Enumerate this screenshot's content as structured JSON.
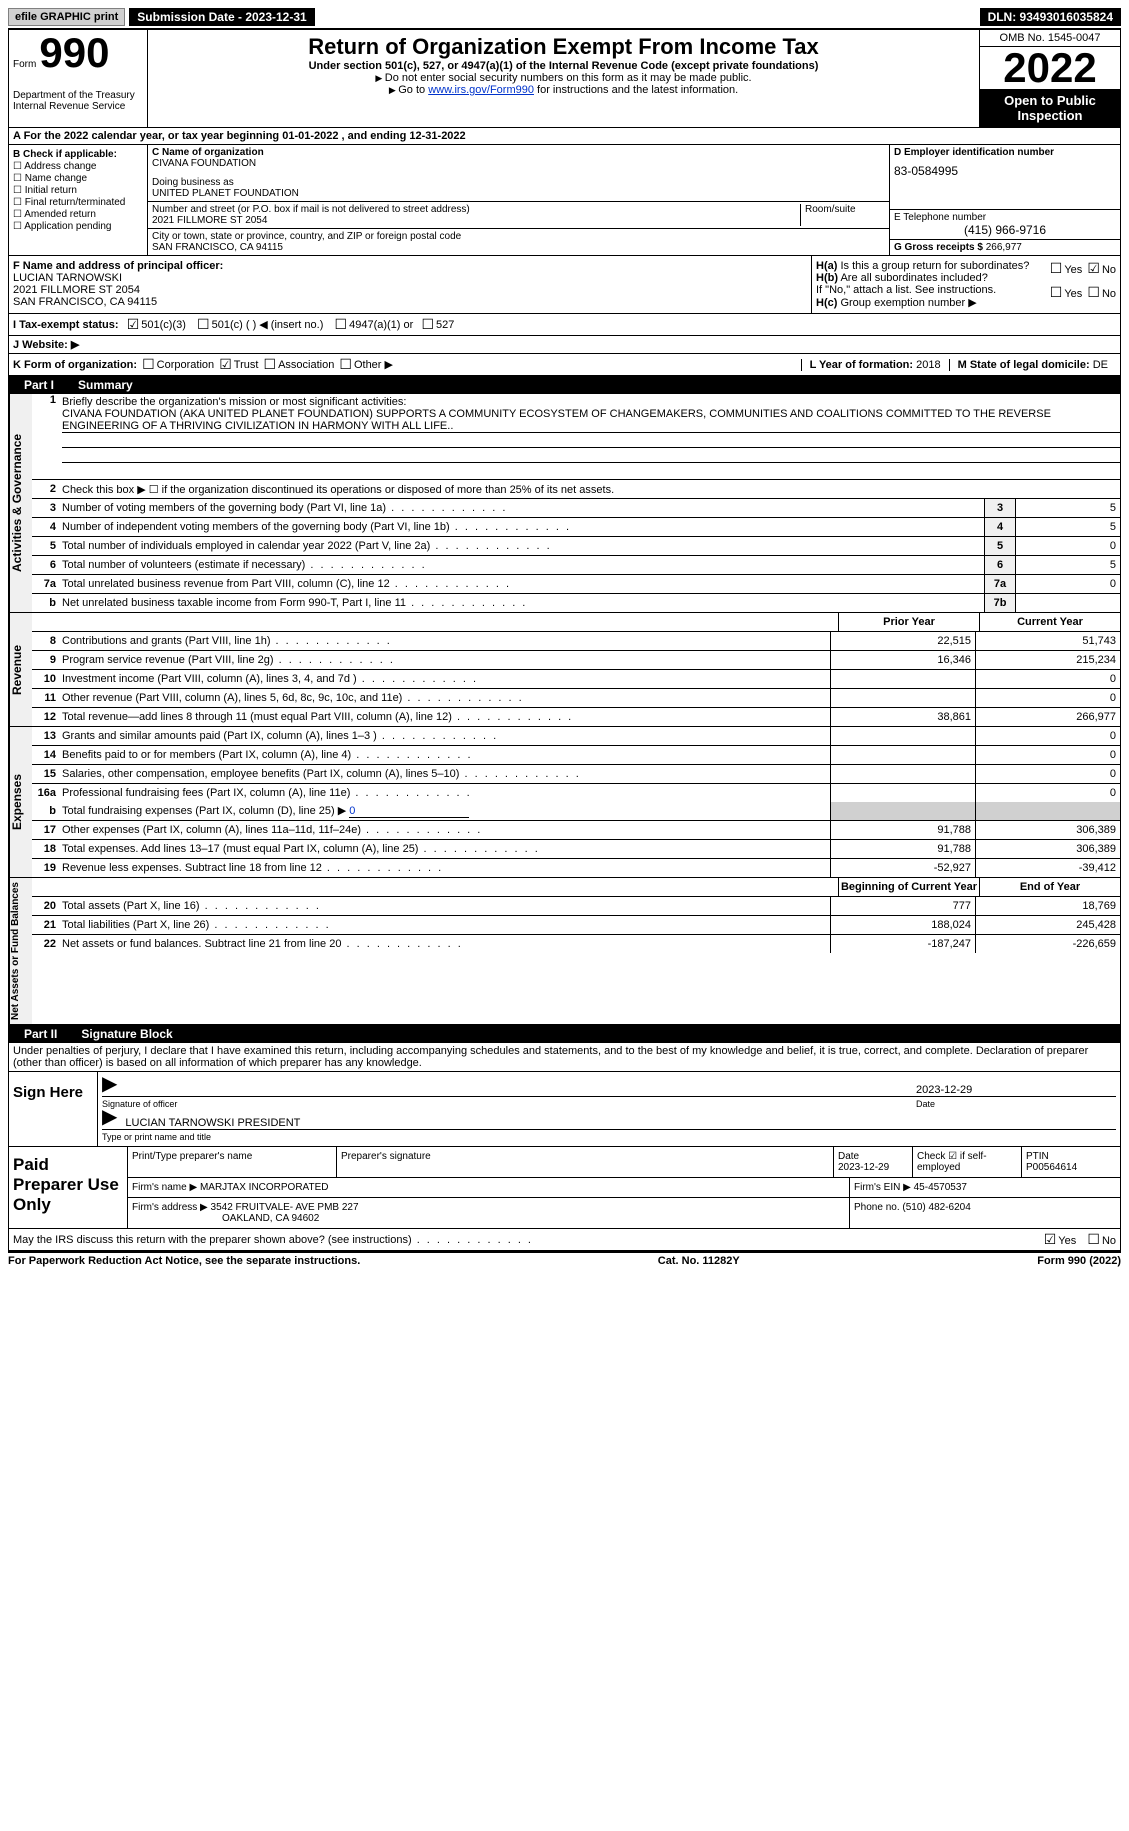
{
  "topbar": {
    "efile": "efile GRAPHIC print",
    "submission": "Submission Date - 2023-12-31",
    "dln": "DLN: 93493016035824"
  },
  "header": {
    "form_word": "Form",
    "form_num": "990",
    "dept": "Department of the Treasury",
    "irs": "Internal Revenue Service",
    "title": "Return of Organization Exempt From Income Tax",
    "sub": "Under section 501(c), 527, or 4947(a)(1) of the Internal Revenue Code (except private foundations)",
    "note1": "Do not enter social security numbers on this form as it may be made public.",
    "note2_pre": "Go to ",
    "note2_link": "www.irs.gov/Form990",
    "note2_post": " for instructions and the latest information.",
    "omb": "OMB No. 1545-0047",
    "year": "2022",
    "open": "Open to Public Inspection"
  },
  "rowA": {
    "text_pre": "A For the 2022 calendar year, or tax year beginning ",
    "begin": "01-01-2022",
    "mid": "   , and ending ",
    "end": "12-31-2022"
  },
  "B": {
    "label": "B Check if applicable:",
    "opts": [
      "Address change",
      "Name change",
      "Initial return",
      "Final return/terminated",
      "Amended return",
      "Application pending"
    ]
  },
  "C": {
    "label": "C Name of organization",
    "name": "CIVANA FOUNDATION",
    "dba_label": "Doing business as",
    "dba": "UNITED PLANET FOUNDATION",
    "street_label": "Number and street (or P.O. box if mail is not delivered to street address)",
    "room_label": "Room/suite",
    "street": "2021 FILLMORE ST 2054",
    "city_label": "City or town, state or province, country, and ZIP or foreign postal code",
    "city": "SAN FRANCISCO, CA  94115"
  },
  "D": {
    "label": "D Employer identification number",
    "val": "83-0584995"
  },
  "E": {
    "label": "E Telephone number",
    "val": "(415) 966-9716"
  },
  "G": {
    "label": "G Gross receipts $",
    "val": "266,977"
  },
  "F": {
    "label": "F  Name and address of principal officer:",
    "name": "LUCIAN TARNOWSKI",
    "addr1": "2021 FILLMORE ST 2054",
    "addr2": "SAN FRANCISCO, CA  94115"
  },
  "H": {
    "a": "Is this a group return for subordinates?",
    "b": "Are all subordinates included?",
    "b_note": "If \"No,\" attach a list. See instructions.",
    "c": "Group exemption number ▶",
    "yes": "Yes",
    "no": "No"
  },
  "I": {
    "label": "I   Tax-exempt status:",
    "o1": "501(c)(3)",
    "o2": "501(c) (   ) ◀ (insert no.)",
    "o3": "4947(a)(1) or",
    "o4": "527"
  },
  "J": {
    "label": "J   Website: ▶"
  },
  "K": {
    "label": "K Form of organization:",
    "o1": "Corporation",
    "o2": "Trust",
    "o3": "Association",
    "o4": "Other ▶"
  },
  "L": {
    "label": "L Year of formation:",
    "val": "2018"
  },
  "M": {
    "label": "M State of legal domicile:",
    "val": "DE"
  },
  "part1": {
    "num": "Part I",
    "title": "Summary"
  },
  "mission": {
    "num": "1",
    "label": "Briefly describe the organization's mission or most significant activities:",
    "text": "CIVANA FOUNDATION (AKA UNITED PLANET FOUNDATION) SUPPORTS A COMMUNITY ECOSYSTEM OF CHANGEMAKERS, COMMUNITIES AND COALITIONS COMMITTED TO THE REVERSE ENGINEERING OF A THRIVING CIVILIZATION IN HARMONY WITH ALL LIFE.."
  },
  "line2": {
    "num": "2",
    "txt": "Check this box ▶ ☐  if the organization discontinued its operations or disposed of more than 25% of its net assets."
  },
  "lines_ag": [
    {
      "n": "3",
      "t": "Number of voting members of the governing body (Part VI, line 1a)",
      "b": "3",
      "v": "5"
    },
    {
      "n": "4",
      "t": "Number of independent voting members of the governing body (Part VI, line 1b)",
      "b": "4",
      "v": "5"
    },
    {
      "n": "5",
      "t": "Total number of individuals employed in calendar year 2022 (Part V, line 2a)",
      "b": "5",
      "v": "0"
    },
    {
      "n": "6",
      "t": "Total number of volunteers (estimate if necessary)",
      "b": "6",
      "v": "5"
    },
    {
      "n": "7a",
      "t": "Total unrelated business revenue from Part VIII, column (C), line 12",
      "b": "7a",
      "v": "0"
    },
    {
      "n": "b",
      "t": "Net unrelated business taxable income from Form 990-T, Part I, line 11",
      "b": "7b",
      "v": ""
    }
  ],
  "side_labels": {
    "ag": "Activities & Governance",
    "rev": "Revenue",
    "exp": "Expenses",
    "na": "Net Assets or Fund Balances"
  },
  "cols": {
    "prior": "Prior Year",
    "curr": "Current Year",
    "beg": "Beginning of Current Year",
    "end": "End of Year"
  },
  "revenue": [
    {
      "n": "8",
      "t": "Contributions and grants (Part VIII, line 1h)",
      "p": "22,515",
      "c": "51,743"
    },
    {
      "n": "9",
      "t": "Program service revenue (Part VIII, line 2g)",
      "p": "16,346",
      "c": "215,234"
    },
    {
      "n": "10",
      "t": "Investment income (Part VIII, column (A), lines 3, 4, and 7d )",
      "p": "",
      "c": "0"
    },
    {
      "n": "11",
      "t": "Other revenue (Part VIII, column (A), lines 5, 6d, 8c, 9c, 10c, and 11e)",
      "p": "",
      "c": "0"
    },
    {
      "n": "12",
      "t": "Total revenue—add lines 8 through 11 (must equal Part VIII, column (A), line 12)",
      "p": "38,861",
      "c": "266,977"
    }
  ],
  "expenses": [
    {
      "n": "13",
      "t": "Grants and similar amounts paid (Part IX, column (A), lines 1–3 )",
      "p": "",
      "c": "0"
    },
    {
      "n": "14",
      "t": "Benefits paid to or for members (Part IX, column (A), line 4)",
      "p": "",
      "c": "0"
    },
    {
      "n": "15",
      "t": "Salaries, other compensation, employee benefits (Part IX, column (A), lines 5–10)",
      "p": "",
      "c": "0"
    },
    {
      "n": "16a",
      "t": "Professional fundraising fees (Part IX, column (A), line 11e)",
      "p": "",
      "c": "0"
    }
  ],
  "exp_b": {
    "n": "b",
    "t": "Total fundraising expenses (Part IX, column (D), line 25) ▶",
    "v": "0"
  },
  "expenses2": [
    {
      "n": "17",
      "t": "Other expenses (Part IX, column (A), lines 11a–11d, 11f–24e)",
      "p": "91,788",
      "c": "306,389"
    },
    {
      "n": "18",
      "t": "Total expenses. Add lines 13–17 (must equal Part IX, column (A), line 25)",
      "p": "91,788",
      "c": "306,389"
    },
    {
      "n": "19",
      "t": "Revenue less expenses. Subtract line 18 from line 12",
      "p": "-52,927",
      "c": "-39,412"
    }
  ],
  "netassets": [
    {
      "n": "20",
      "t": "Total assets (Part X, line 16)",
      "p": "777",
      "c": "18,769"
    },
    {
      "n": "21",
      "t": "Total liabilities (Part X, line 26)",
      "p": "188,024",
      "c": "245,428"
    },
    {
      "n": "22",
      "t": "Net assets or fund balances. Subtract line 21 from line 20",
      "p": "-187,247",
      "c": "-226,659"
    }
  ],
  "part2": {
    "num": "Part II",
    "title": "Signature Block"
  },
  "sig": {
    "penalties": "Under penalties of perjury, I declare that I have examined this return, including accompanying schedules and statements, and to the best of my knowledge and belief, it is true, correct, and complete. Declaration of preparer (other than officer) is based on all information of which preparer has any knowledge.",
    "sign_here": "Sign Here",
    "sig_label": "Signature of officer",
    "date": "2023-12-29",
    "date_label": "Date",
    "name": "LUCIAN TARNOWSKI PRESIDENT",
    "name_label": "Type or print name and title"
  },
  "prep": {
    "title": "Paid Preparer Use Only",
    "print_label": "Print/Type preparer's name",
    "sig_label": "Preparer's signature",
    "date_label": "Date",
    "date": "2023-12-29",
    "check_label": "Check ☑ if self-employed",
    "ptin_label": "PTIN",
    "ptin": "P00564614",
    "firm_label": "Firm's name    ▶",
    "firm": "MARJTAX INCORPORATED",
    "ein_label": "Firm's EIN ▶",
    "ein": "45-4570537",
    "addr_label": "Firm's address ▶",
    "addr1": "3542 FRUITVALE- AVE PMB 227",
    "addr2": "OAKLAND, CA  94602",
    "phone_label": "Phone no.",
    "phone": "(510) 482-6204"
  },
  "discuss": {
    "txt": "May the IRS discuss this return with the preparer shown above? (see instructions)",
    "yes": "Yes",
    "no": "No"
  },
  "footer": {
    "left": "For Paperwork Reduction Act Notice, see the separate instructions.",
    "mid": "Cat. No. 11282Y",
    "right": "Form 990 (2022)"
  }
}
